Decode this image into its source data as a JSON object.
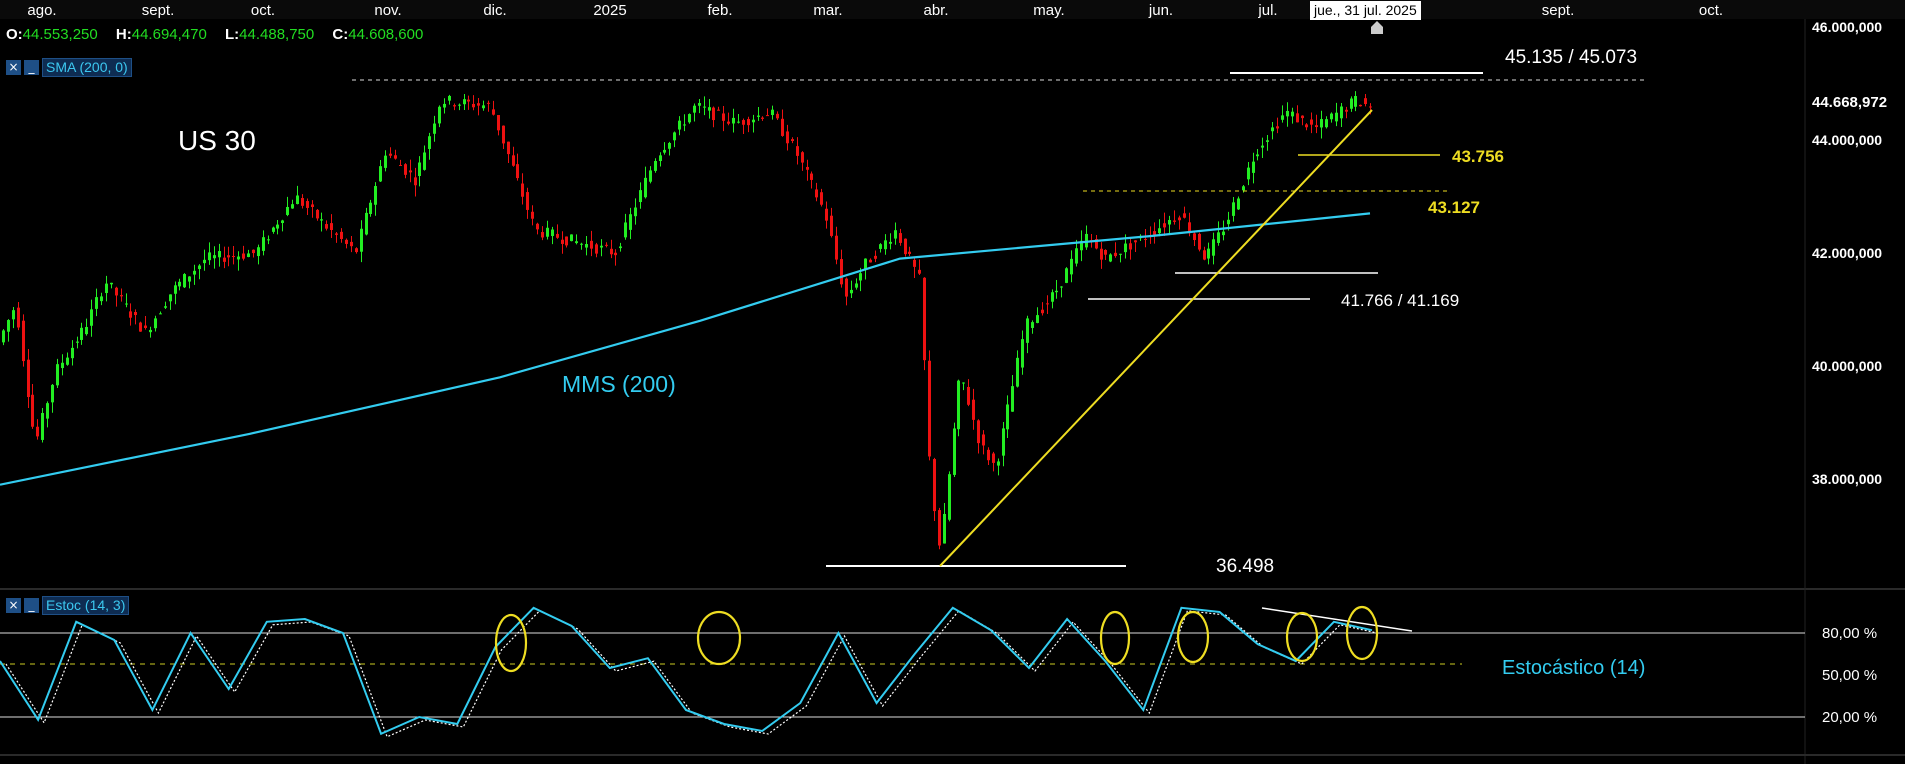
{
  "chart_data": [
    {
      "type": "candlestick",
      "title": "US 30",
      "x_tick_labels": [
        "ago.",
        "sept.",
        "oct.",
        "nov.",
        "dic.",
        "2025",
        "feb.",
        "mar.",
        "abr.",
        "may.",
        "jun.",
        "jul.",
        "sept.",
        "oct."
      ],
      "y_tick_labels": [
        "46.000,000",
        "44.000,000",
        "42.000,000",
        "40.000,000",
        "38.000,000"
      ],
      "ylim": [
        35800,
        46000
      ],
      "last_price_label": "44.668,972",
      "cursor_date": "jue., 31 jul. 2025",
      "ohlc": {
        "open": "44.553,250",
        "high": "44.694,470",
        "low": "44.488,750",
        "close": "44.608,600"
      },
      "series": [
        {
          "name": "US 30",
          "kind": "candles",
          "x": [
            "ago.",
            "sept.",
            "oct.",
            "nov.",
            "dic.",
            "2025",
            "feb.",
            "mar.",
            "abr.",
            "may.",
            "jun.",
            "jul."
          ],
          "values": [
            39200,
            40700,
            42200,
            42000,
            44800,
            43600,
            44600,
            43400,
            39800,
            41700,
            42500,
            44600
          ]
        },
        {
          "name": "SMA (200, 0)",
          "kind": "line",
          "x": [
            "ago.",
            "oct.",
            "dic.",
            "feb.",
            "abr.",
            "jun.",
            "jul."
          ],
          "values": [
            37900,
            38800,
            39800,
            40800,
            41900,
            42300,
            42700
          ]
        }
      ],
      "annotations": [
        {
          "text": "45.135 / 45.073",
          "y": 45100
        },
        {
          "text": "43.756",
          "y": 43756
        },
        {
          "text": "43.127",
          "y": 43127
        },
        {
          "text": "41.766 / 41.169",
          "y": 41466
        },
        {
          "text": "36.498",
          "y": 36498
        },
        {
          "text": "MMS (200)"
        }
      ],
      "colors": {
        "up": "#22ee22",
        "down": "#ee1111",
        "sma": "#33ccf0",
        "support": "#ffffff",
        "trend": "#eedd22",
        "level": "#eedd22"
      }
    },
    {
      "type": "line",
      "title": "Estoc (14, 3)",
      "label": "Estocástico (14)",
      "y_tick_labels": [
        "80,00 %",
        "50,00 %",
        "20,00 %"
      ],
      "ylim": [
        0,
        100
      ],
      "reference_lines": [
        80,
        50,
        20
      ],
      "series": [
        {
          "name": "Estoc (14, 3)",
          "kind": "line",
          "values": [
            60,
            18,
            88,
            75,
            25,
            80,
            40,
            88,
            90,
            80,
            8,
            20,
            15,
            70,
            98,
            85,
            55,
            62,
            25,
            15,
            10,
            30,
            80,
            30,
            65,
            98,
            82,
            55,
            90,
            60,
            25,
            98,
            95,
            72,
            60,
            88,
            82
          ]
        }
      ],
      "highlight_circles": 6,
      "colors": {
        "main": "#33ccf0",
        "signal": "#ffffff",
        "mid": "#cccc22"
      }
    }
  ],
  "tags": {
    "sma": {
      "close": "×",
      "minimize": "_",
      "label": "SMA (200, 0)"
    },
    "stoch": {
      "close": "×",
      "minimize": "_",
      "label": "Estoc (14, 3)"
    }
  }
}
